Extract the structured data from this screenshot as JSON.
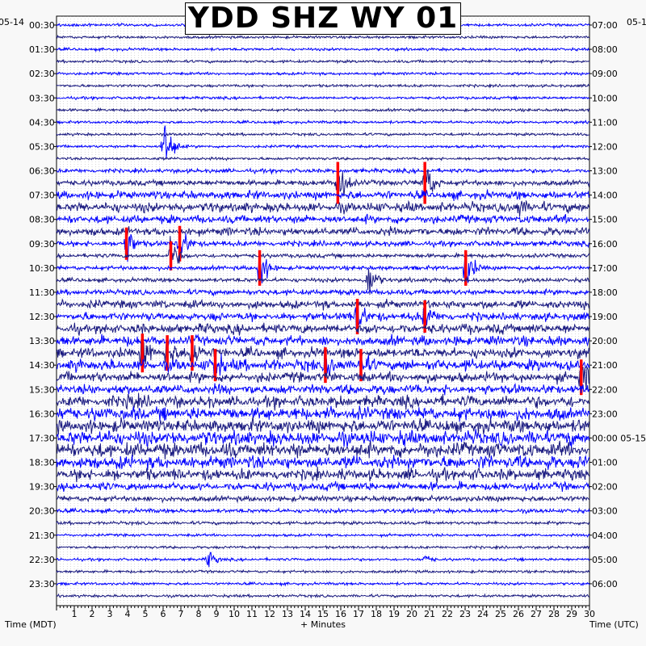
{
  "title": "YDD SHZ WY 01",
  "date_left": "05-14",
  "date_right_top": "05-1",
  "date_right_mid": "05-15",
  "xlabel_left": "Time (MDT)",
  "xlabel_center": "+ Minutes",
  "xlabel_right": "Time (UTC)",
  "colors": {
    "trace_dark": "#1a1a80",
    "trace_blue": "#0000ff",
    "clipped": "#ff0000",
    "grid": "#000000",
    "background": "#ffffff"
  },
  "chart_data": {
    "type": "helicorder",
    "title": "YDD SHZ WY 01",
    "xlabel": "+ Minutes",
    "xlim": [
      0,
      30
    ],
    "x_ticks": [
      "1",
      "2",
      "3",
      "4",
      "5",
      "6",
      "7",
      "8",
      "9",
      "10",
      "11",
      "12",
      "13",
      "14",
      "15",
      "16",
      "17",
      "18",
      "19",
      "20",
      "21",
      "22",
      "23",
      "24",
      "25",
      "26",
      "27",
      "28",
      "29",
      "30"
    ],
    "rows_per_label": 2,
    "left_time_labels": [
      "00:30",
      "01:30",
      "02:30",
      "03:30",
      "04:30",
      "05:30",
      "06:30",
      "07:30",
      "08:30",
      "09:30",
      "10:30",
      "11:30",
      "12:30",
      "13:30",
      "14:30",
      "15:30",
      "16:30",
      "17:30",
      "18:30",
      "19:30",
      "20:30",
      "21:30",
      "22:30",
      "23:30"
    ],
    "right_time_labels": [
      "07:00",
      "08:00",
      "09:00",
      "10:00",
      "11:00",
      "12:00",
      "13:00",
      "14:00",
      "15:00",
      "16:00",
      "17:00",
      "18:00",
      "19:00",
      "20:00",
      "21:00",
      "22:00",
      "23:00",
      "00:00 05-15",
      "01:00",
      "02:00",
      "03:00",
      "04:00",
      "05:00",
      "06:00"
    ],
    "row_color_cycle": [
      "blue",
      "dark"
    ],
    "row_activity": [
      1,
      1,
      1,
      1,
      1,
      1,
      1,
      1,
      1,
      1,
      1,
      1,
      1.5,
      2,
      2.5,
      3,
      2.5,
      2.5,
      2,
      1.5,
      1.5,
      1.5,
      2,
      2.5,
      2.5,
      3,
      3,
      3,
      3.5,
      3,
      3,
      3.5,
      4,
      4,
      4.5,
      4.5,
      4,
      3.5,
      2.5,
      2,
      1.5,
      1.2,
      1,
      1,
      1,
      1,
      1,
      1
    ],
    "events": [
      {
        "row": 10,
        "minute": 6.0,
        "amplitude": 28,
        "clipped": false
      },
      {
        "row": 13,
        "minute": 15.8,
        "amplitude": 26,
        "clipped": true
      },
      {
        "row": 13,
        "minute": 20.7,
        "amplitude": 26,
        "clipped": true
      },
      {
        "row": 15,
        "minute": 26.0,
        "amplitude": 14,
        "clipped": false
      },
      {
        "row": 18,
        "minute": 3.9,
        "amplitude": 20,
        "clipped": true
      },
      {
        "row": 18,
        "minute": 6.9,
        "amplitude": 22,
        "clipped": true
      },
      {
        "row": 19,
        "minute": 6.4,
        "amplitude": 18,
        "clipped": true
      },
      {
        "row": 20,
        "minute": 11.4,
        "amplitude": 22,
        "clipped": true
      },
      {
        "row": 20,
        "minute": 23.0,
        "amplitude": 22,
        "clipped": true
      },
      {
        "row": 21,
        "minute": 17.5,
        "amplitude": 20,
        "clipped": false
      },
      {
        "row": 24,
        "minute": 16.9,
        "amplitude": 22,
        "clipped": true
      },
      {
        "row": 24,
        "minute": 20.7,
        "amplitude": 20,
        "clipped": true
      },
      {
        "row": 27,
        "minute": 4.8,
        "amplitude": 24,
        "clipped": true
      },
      {
        "row": 27,
        "minute": 6.2,
        "amplitude": 22,
        "clipped": true
      },
      {
        "row": 27,
        "minute": 7.6,
        "amplitude": 22,
        "clipped": true
      },
      {
        "row": 28,
        "minute": 8.9,
        "amplitude": 20,
        "clipped": true
      },
      {
        "row": 28,
        "minute": 15.1,
        "amplitude": 22,
        "clipped": true
      },
      {
        "row": 28,
        "minute": 17.1,
        "amplitude": 20,
        "clipped": true
      },
      {
        "row": 29,
        "minute": 29.5,
        "amplitude": 22,
        "clipped": true
      },
      {
        "row": 31,
        "minute": 4.0,
        "amplitude": 14,
        "clipped": false
      },
      {
        "row": 44,
        "minute": 8.5,
        "amplitude": 10,
        "clipped": false
      },
      {
        "row": 44,
        "minute": 20.7,
        "amplitude": 6,
        "clipped": false
      }
    ]
  }
}
